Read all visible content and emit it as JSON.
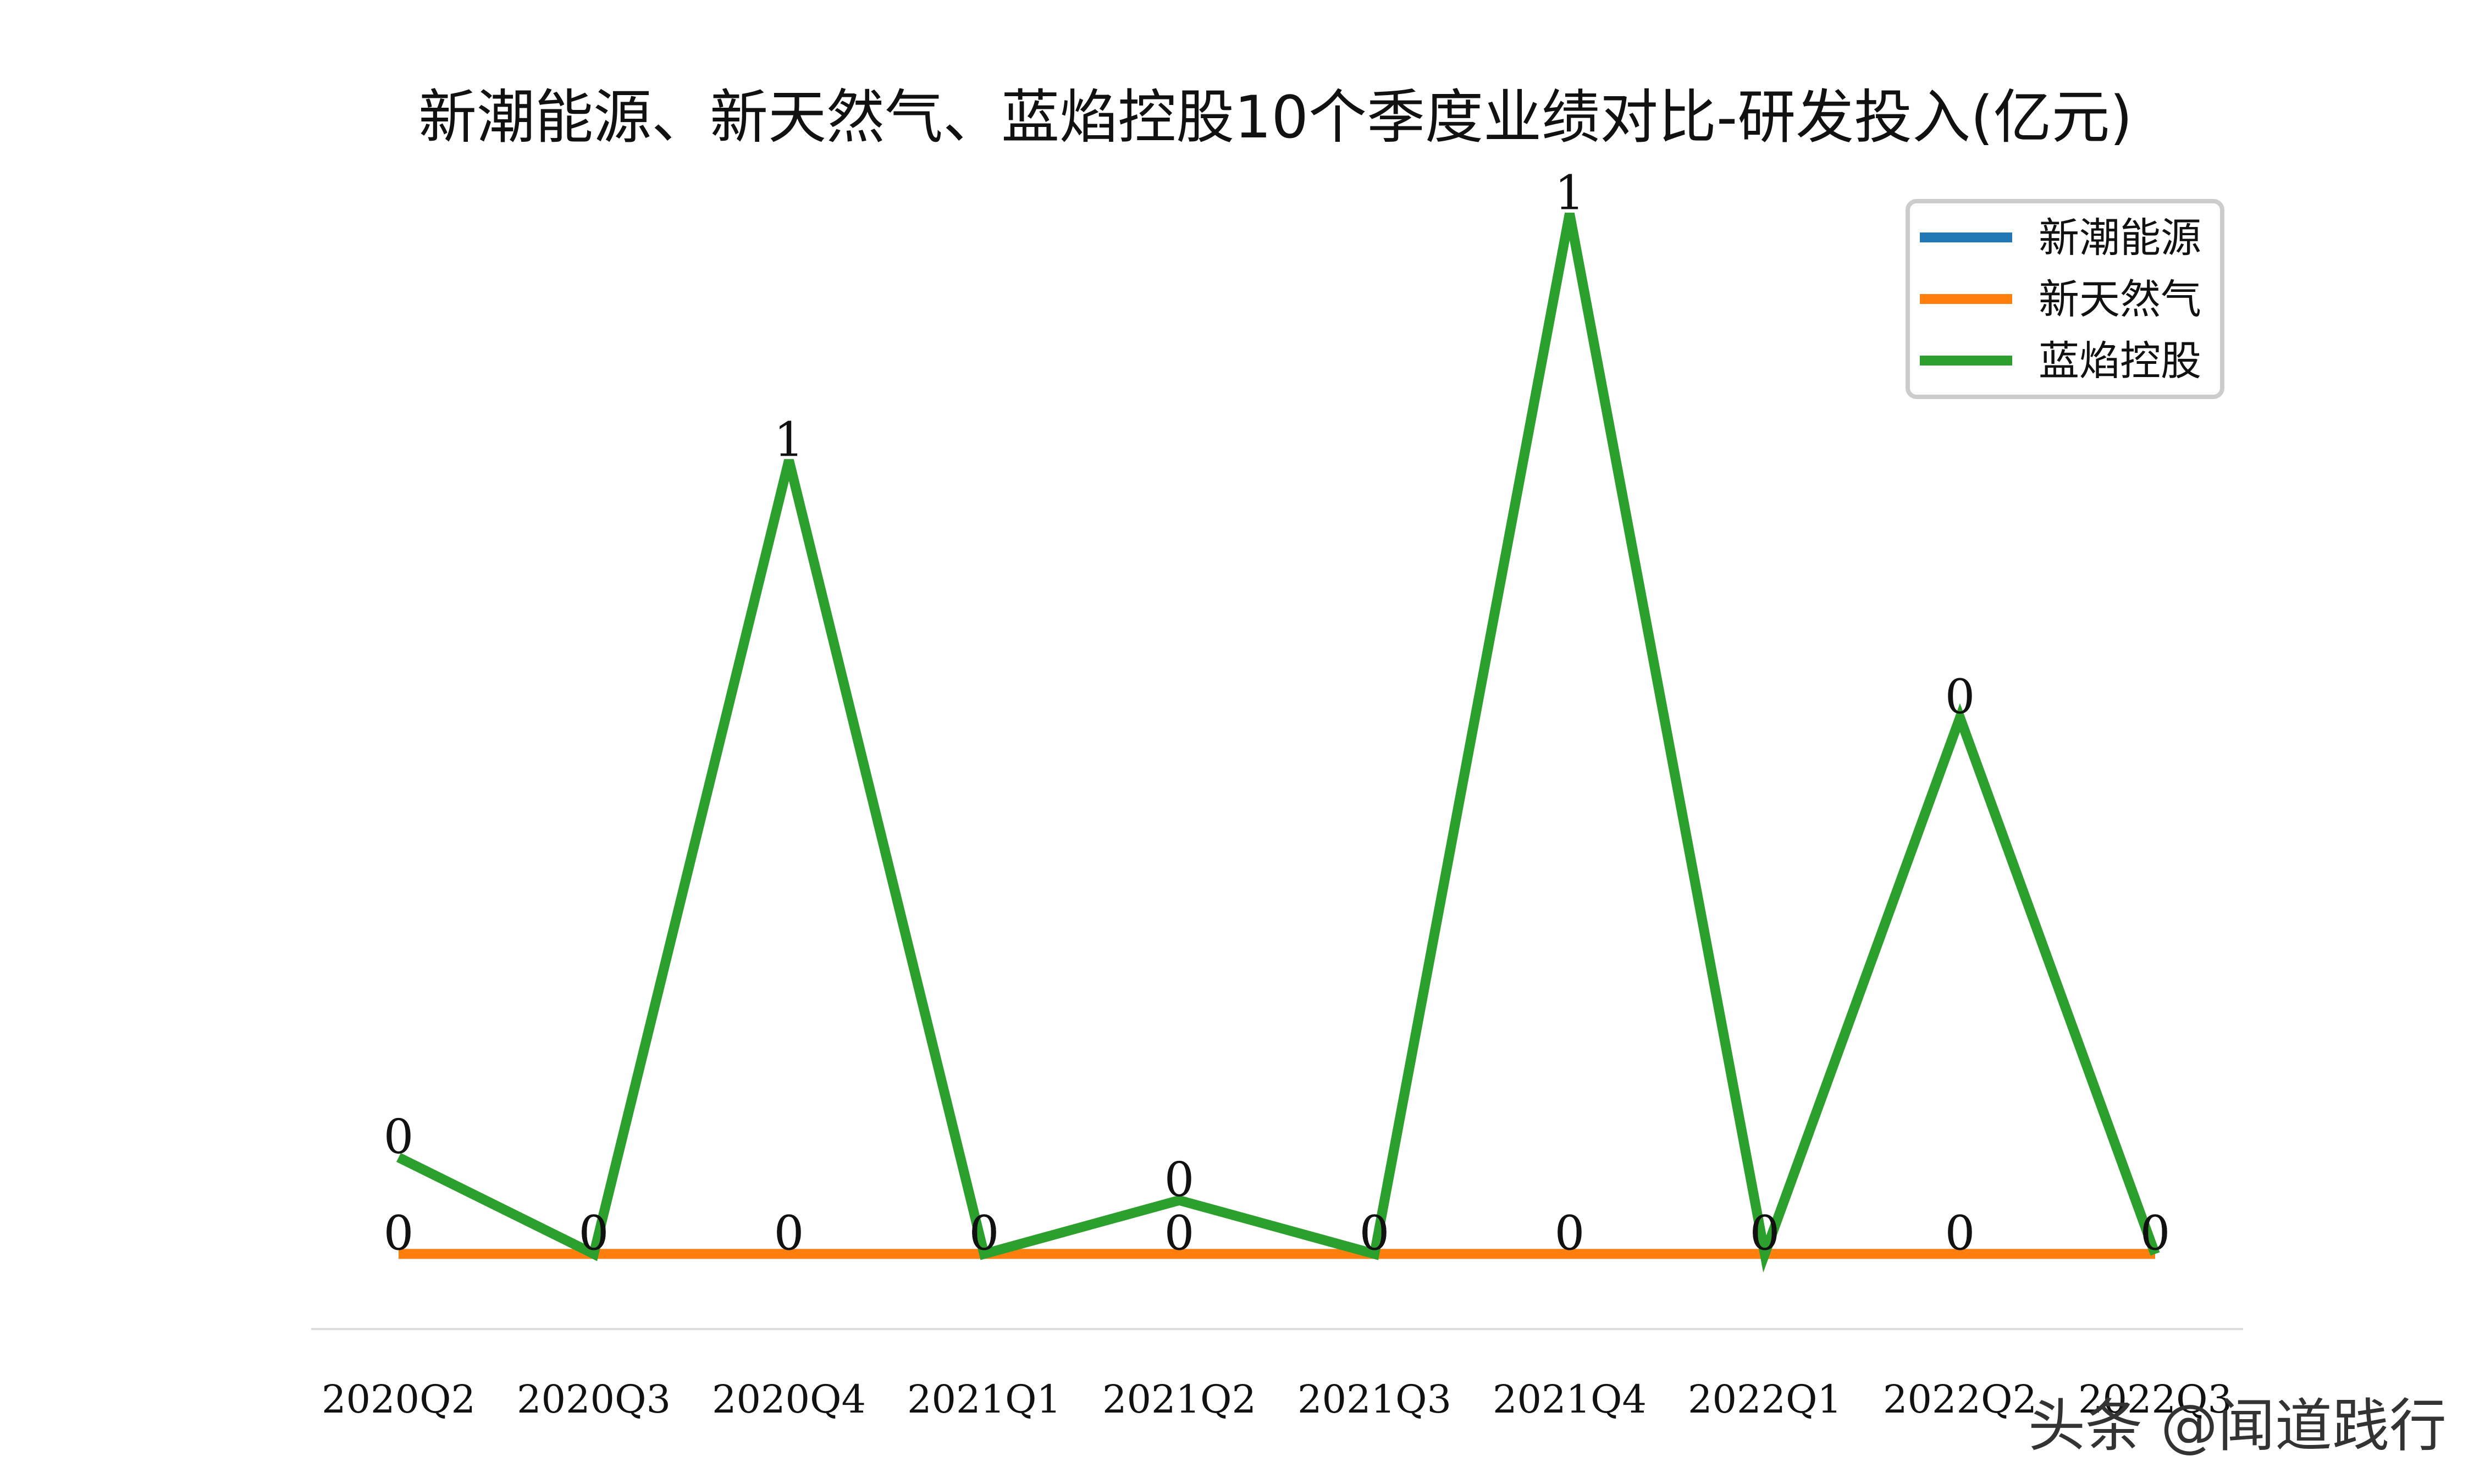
{
  "chart_data": {
    "type": "line",
    "title": "新潮能源、新天然气、蓝焰控股10个季度业绩对比-研发投入(亿元)",
    "xlabel": "",
    "ylabel": "",
    "categories": [
      "2020Q2",
      "2020Q3",
      "2020Q4",
      "2021Q1",
      "2021Q2",
      "2021Q3",
      "2021Q4",
      "2022Q1",
      "2022Q2",
      "2022Q3"
    ],
    "ylim": [
      -0.07,
      1.0
    ],
    "grid": false,
    "legend_position": "top-right",
    "series": [
      {
        "name": "新潮能源",
        "color": "#1f77b4",
        "values": [
          0,
          0,
          0,
          0,
          0,
          0,
          0,
          0,
          0,
          0
        ],
        "labels": [
          "0",
          "0",
          "0",
          "0",
          "0",
          "0",
          "0",
          "0",
          "0",
          "0"
        ]
      },
      {
        "name": "新天然气",
        "color": "#ff7f0e",
        "values": [
          0,
          0,
          0,
          0,
          0,
          0,
          0,
          0,
          0,
          0
        ],
        "labels": [
          "0",
          "0",
          "0",
          "0",
          "0",
          "0",
          "0",
          "0",
          "0",
          "0"
        ]
      },
      {
        "name": "蓝焰控股",
        "color": "#2ca02c",
        "values": [
          0.09,
          0,
          0.74,
          0,
          0.05,
          0,
          0.97,
          0,
          0.5,
          0
        ],
        "labels": [
          "0",
          "0",
          "1",
          "0",
          "0",
          "0",
          "1",
          "0",
          "0",
          "0"
        ]
      }
    ]
  },
  "watermark": "头条 @闻道践行"
}
